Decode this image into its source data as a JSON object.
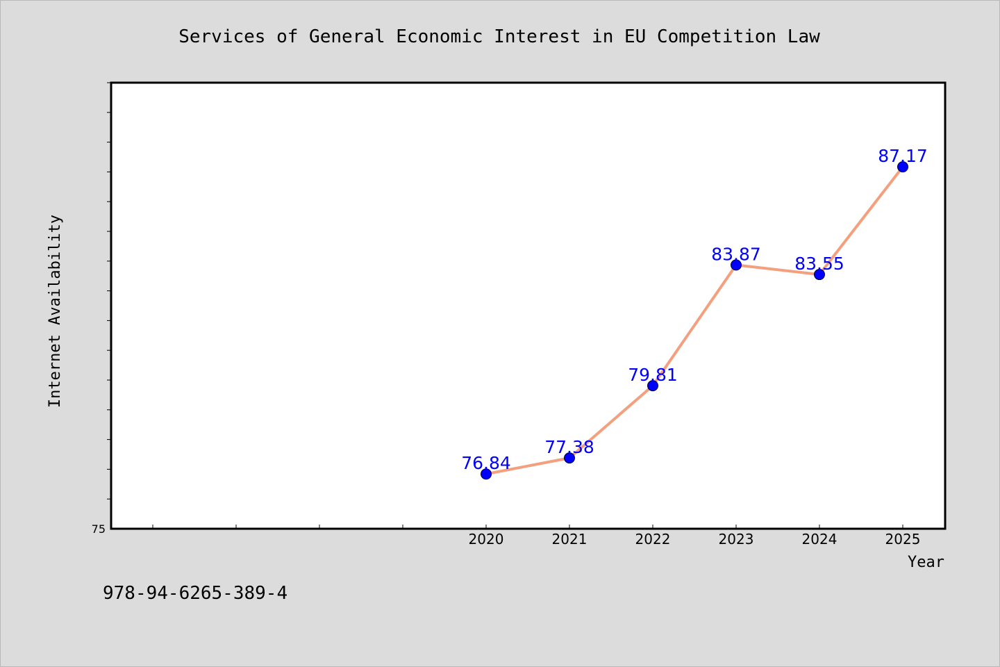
{
  "chart_data": {
    "type": "line",
    "title": "Services of General Economic Interest in EU Competition Law",
    "xlabel": "Year",
    "ylabel": "Internet Availability",
    "categories": [
      "2020",
      "2021",
      "2022",
      "2023",
      "2024",
      "2025"
    ],
    "series": [
      {
        "values": [
          76.84,
          77.38,
          79.81,
          83.87,
          83.55,
          87.17
        ],
        "data_labels": [
          "76.84",
          "77.38",
          "79.81",
          "83.87",
          "83.55",
          "87.17"
        ],
        "line_color": "#f4a07e",
        "marker_color": "#0000ff"
      }
    ],
    "ylim": [
      75,
      90
    ],
    "y_tick_labels": [
      "75"
    ],
    "grid": false,
    "legend": "none"
  },
  "footer": {
    "isbn": "978-94-6265-389-4"
  },
  "colors": {
    "background": "#dcdcdc",
    "plot_background": "#ffffff",
    "data_label": "#0000ff"
  }
}
